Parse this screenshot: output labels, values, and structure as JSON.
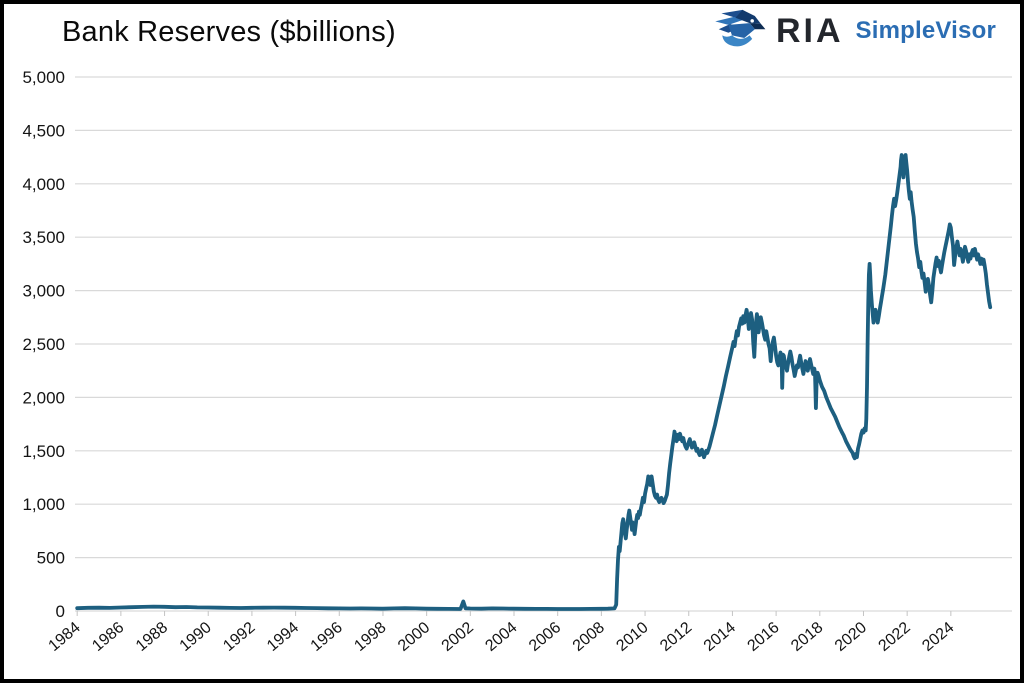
{
  "header": {
    "title": "Bank Reserves ($billions)",
    "logo": {
      "brand": "RIA",
      "product": "SimpleVisor",
      "icon": "eagle-icon",
      "brand_color": "#23262c",
      "product_color": "#2b6db3"
    }
  },
  "chart_data": {
    "type": "line",
    "title": "Bank Reserves ($billions)",
    "series_name": "Bank Reserves",
    "line_color": "#1d5f80",
    "grid_color": "#d9d9d9",
    "background": "#ffffff",
    "legend": "none",
    "grid": "horizontal-only",
    "xlabel": "",
    "ylabel": "",
    "ylim": [
      0,
      5000
    ],
    "xlim": [
      1983.9,
      2026.8
    ],
    "x_label_rotation": -40,
    "y_ticks": [
      0,
      500,
      1000,
      1500,
      2000,
      2500,
      3000,
      3500,
      4000,
      4500,
      5000
    ],
    "y_tick_labels": [
      "0",
      "500",
      "1,000",
      "1,500",
      "2,000",
      "2,500",
      "3,000",
      "3,500",
      "4,000",
      "4,500",
      "5,000"
    ],
    "x_ticks": [
      1984,
      1986,
      1988,
      1990,
      1992,
      1994,
      1996,
      1998,
      2000,
      2002,
      2004,
      2006,
      2008,
      2010,
      2012,
      2014,
      2016,
      2018,
      2020,
      2022,
      2024
    ],
    "x_tick_labels": [
      "1984",
      "1986",
      "1988",
      "1990",
      "1992",
      "1994",
      "1996",
      "1998",
      "2000",
      "2002",
      "2004",
      "2006",
      "2008",
      "2010",
      "2012",
      "2014",
      "2016",
      "2018",
      "2020",
      "2022",
      "2024"
    ],
    "points": [
      [
        1984,
        26
      ],
      [
        1984.5,
        30
      ],
      [
        1985,
        31
      ],
      [
        1985.5,
        29
      ],
      [
        1986,
        33
      ],
      [
        1986.5,
        36
      ],
      [
        1987,
        38
      ],
      [
        1987.5,
        41
      ],
      [
        1988,
        39
      ],
      [
        1988.5,
        36
      ],
      [
        1989,
        37
      ],
      [
        1989.5,
        34
      ],
      [
        1990,
        33
      ],
      [
        1990.5,
        31
      ],
      [
        1991,
        29
      ],
      [
        1991.5,
        28
      ],
      [
        1992,
        30
      ],
      [
        1992.5,
        31
      ],
      [
        1993,
        32
      ],
      [
        1993.5,
        31
      ],
      [
        1994,
        30
      ],
      [
        1994.5,
        28
      ],
      [
        1995,
        27
      ],
      [
        1995.5,
        25
      ],
      [
        1996,
        24
      ],
      [
        1996.5,
        23
      ],
      [
        1997,
        24
      ],
      [
        1997.5,
        23
      ],
      [
        1998,
        22
      ],
      [
        1998.5,
        24
      ],
      [
        1999,
        26
      ],
      [
        1999.5,
        24
      ],
      [
        2000,
        22
      ],
      [
        2000.5,
        21
      ],
      [
        2001,
        20
      ],
      [
        2001.55,
        19
      ],
      [
        2001.68,
        90
      ],
      [
        2001.78,
        25
      ],
      [
        2002,
        23
      ],
      [
        2002.5,
        22
      ],
      [
        2003,
        24
      ],
      [
        2003.5,
        23
      ],
      [
        2004,
        22
      ],
      [
        2004.5,
        21
      ],
      [
        2005,
        20
      ],
      [
        2005.5,
        20
      ],
      [
        2006,
        19
      ],
      [
        2006.5,
        19
      ],
      [
        2007,
        19
      ],
      [
        2007.5,
        20
      ],
      [
        2008,
        21
      ],
      [
        2008.3,
        22
      ],
      [
        2008.6,
        24
      ],
      [
        2008.68,
        60
      ],
      [
        2008.72,
        300
      ],
      [
        2008.76,
        480
      ],
      [
        2008.8,
        600
      ],
      [
        2008.84,
        560
      ],
      [
        2008.88,
        650
      ],
      [
        2008.92,
        740
      ],
      [
        2008.96,
        820
      ],
      [
        2009,
        860
      ],
      [
        2009.04,
        800
      ],
      [
        2009.08,
        720
      ],
      [
        2009.12,
        680
      ],
      [
        2009.16,
        760
      ],
      [
        2009.2,
        830
      ],
      [
        2009.24,
        900
      ],
      [
        2009.28,
        940
      ],
      [
        2009.32,
        880
      ],
      [
        2009.36,
        820
      ],
      [
        2009.4,
        760
      ],
      [
        2009.44,
        830
      ],
      [
        2009.48,
        780
      ],
      [
        2009.52,
        720
      ],
      [
        2009.56,
        790
      ],
      [
        2009.6,
        850
      ],
      [
        2009.64,
        900
      ],
      [
        2009.68,
        870
      ],
      [
        2009.72,
        930
      ],
      [
        2009.76,
        900
      ],
      [
        2009.8,
        950
      ],
      [
        2009.85,
        1000
      ],
      [
        2009.9,
        1060
      ],
      [
        2009.95,
        1020
      ],
      [
        2010,
        1100
      ],
      [
        2010.05,
        1150
      ],
      [
        2010.1,
        1190
      ],
      [
        2010.15,
        1260
      ],
      [
        2010.2,
        1220
      ],
      [
        2010.25,
        1180
      ],
      [
        2010.3,
        1260
      ],
      [
        2010.35,
        1190
      ],
      [
        2010.4,
        1120
      ],
      [
        2010.45,
        1080
      ],
      [
        2010.5,
        1060
      ],
      [
        2010.55,
        1090
      ],
      [
        2010.6,
        1040
      ],
      [
        2010.65,
        1020
      ],
      [
        2010.7,
        1035
      ],
      [
        2010.75,
        1060
      ],
      [
        2010.8,
        1040
      ],
      [
        2010.85,
        1010
      ],
      [
        2010.9,
        1030
      ],
      [
        2010.95,
        1060
      ],
      [
        2011,
        1090
      ],
      [
        2011.05,
        1180
      ],
      [
        2011.1,
        1290
      ],
      [
        2011.15,
        1380
      ],
      [
        2011.2,
        1460
      ],
      [
        2011.25,
        1540
      ],
      [
        2011.3,
        1610
      ],
      [
        2011.35,
        1680
      ],
      [
        2011.4,
        1630
      ],
      [
        2011.45,
        1590
      ],
      [
        2011.5,
        1650
      ],
      [
        2011.55,
        1610
      ],
      [
        2011.6,
        1660
      ],
      [
        2011.65,
        1620
      ],
      [
        2011.7,
        1590
      ],
      [
        2011.75,
        1620
      ],
      [
        2011.8,
        1570
      ],
      [
        2011.85,
        1540
      ],
      [
        2011.9,
        1520
      ],
      [
        2011.95,
        1550
      ],
      [
        2012,
        1580
      ],
      [
        2012.05,
        1610
      ],
      [
        2012.1,
        1570
      ],
      [
        2012.15,
        1530
      ],
      [
        2012.2,
        1550
      ],
      [
        2012.25,
        1580
      ],
      [
        2012.3,
        1540
      ],
      [
        2012.35,
        1500
      ],
      [
        2012.4,
        1520
      ],
      [
        2012.45,
        1480
      ],
      [
        2012.5,
        1460
      ],
      [
        2012.55,
        1490
      ],
      [
        2012.6,
        1510
      ],
      [
        2012.65,
        1470
      ],
      [
        2012.7,
        1440
      ],
      [
        2012.75,
        1470
      ],
      [
        2012.8,
        1500
      ],
      [
        2012.85,
        1480
      ],
      [
        2012.9,
        1510
      ],
      [
        2012.95,
        1540
      ],
      [
        2013,
        1580
      ],
      [
        2013.1,
        1660
      ],
      [
        2013.2,
        1740
      ],
      [
        2013.3,
        1830
      ],
      [
        2013.4,
        1920
      ],
      [
        2013.5,
        2010
      ],
      [
        2013.6,
        2100
      ],
      [
        2013.7,
        2200
      ],
      [
        2013.8,
        2290
      ],
      [
        2013.9,
        2380
      ],
      [
        2014,
        2470
      ],
      [
        2014.05,
        2520
      ],
      [
        2014.1,
        2480
      ],
      [
        2014.15,
        2560
      ],
      [
        2014.2,
        2620
      ],
      [
        2014.25,
        2580
      ],
      [
        2014.3,
        2660
      ],
      [
        2014.35,
        2700
      ],
      [
        2014.4,
        2740
      ],
      [
        2014.45,
        2690
      ],
      [
        2014.5,
        2760
      ],
      [
        2014.55,
        2700
      ],
      [
        2014.6,
        2770
      ],
      [
        2014.65,
        2820
      ],
      [
        2014.7,
        2750
      ],
      [
        2014.75,
        2640
      ],
      [
        2014.8,
        2710
      ],
      [
        2014.85,
        2790
      ],
      [
        2014.9,
        2730
      ],
      [
        2014.95,
        2520
      ],
      [
        2015,
        2380
      ],
      [
        2015.04,
        2550
      ],
      [
        2015.08,
        2700
      ],
      [
        2015.12,
        2780
      ],
      [
        2015.16,
        2720
      ],
      [
        2015.2,
        2610
      ],
      [
        2015.25,
        2690
      ],
      [
        2015.3,
        2750
      ],
      [
        2015.35,
        2700
      ],
      [
        2015.4,
        2640
      ],
      [
        2015.45,
        2580
      ],
      [
        2015.5,
        2540
      ],
      [
        2015.55,
        2620
      ],
      [
        2015.6,
        2560
      ],
      [
        2015.65,
        2500
      ],
      [
        2015.7,
        2460
      ],
      [
        2015.75,
        2340
      ],
      [
        2015.8,
        2450
      ],
      [
        2015.85,
        2520
      ],
      [
        2015.9,
        2560
      ],
      [
        2015.95,
        2480
      ],
      [
        2016,
        2390
      ],
      [
        2016.05,
        2330
      ],
      [
        2016.1,
        2300
      ],
      [
        2016.15,
        2370
      ],
      [
        2016.2,
        2420
      ],
      [
        2016.25,
        2380
      ],
      [
        2016.28,
        2090
      ],
      [
        2016.32,
        2400
      ],
      [
        2016.35,
        2390
      ],
      [
        2016.4,
        2330
      ],
      [
        2016.45,
        2290
      ],
      [
        2016.5,
        2250
      ],
      [
        2016.55,
        2320
      ],
      [
        2016.6,
        2380
      ],
      [
        2016.65,
        2430
      ],
      [
        2016.7,
        2380
      ],
      [
        2016.75,
        2310
      ],
      [
        2016.8,
        2260
      ],
      [
        2016.85,
        2200
      ],
      [
        2016.9,
        2250
      ],
      [
        2016.95,
        2300
      ],
      [
        2017,
        2280
      ],
      [
        2017.05,
        2340
      ],
      [
        2017.1,
        2390
      ],
      [
        2017.15,
        2330
      ],
      [
        2017.2,
        2270
      ],
      [
        2017.25,
        2220
      ],
      [
        2017.3,
        2280
      ],
      [
        2017.35,
        2340
      ],
      [
        2017.4,
        2300
      ],
      [
        2017.45,
        2250
      ],
      [
        2017.5,
        2310
      ],
      [
        2017.55,
        2360
      ],
      [
        2017.6,
        2310
      ],
      [
        2017.65,
        2260
      ],
      [
        2017.7,
        2220
      ],
      [
        2017.75,
        2270
      ],
      [
        2017.78,
        2230
      ],
      [
        2017.82,
        1900
      ],
      [
        2017.86,
        2180
      ],
      [
        2017.9,
        2230
      ],
      [
        2017.95,
        2200
      ],
      [
        2018,
        2160
      ],
      [
        2018.1,
        2100
      ],
      [
        2018.2,
        2060
      ],
      [
        2018.3,
        2000
      ],
      [
        2018.4,
        1950
      ],
      [
        2018.5,
        1900
      ],
      [
        2018.6,
        1860
      ],
      [
        2018.7,
        1820
      ],
      [
        2018.8,
        1770
      ],
      [
        2018.9,
        1720
      ],
      [
        2019,
        1680
      ],
      [
        2019.1,
        1640
      ],
      [
        2019.2,
        1590
      ],
      [
        2019.3,
        1550
      ],
      [
        2019.4,
        1510
      ],
      [
        2019.5,
        1480
      ],
      [
        2019.55,
        1450
      ],
      [
        2019.6,
        1430
      ],
      [
        2019.65,
        1470
      ],
      [
        2019.7,
        1440
      ],
      [
        2019.75,
        1520
      ],
      [
        2019.8,
        1560
      ],
      [
        2019.85,
        1610
      ],
      [
        2019.9,
        1660
      ],
      [
        2019.95,
        1690
      ],
      [
        2020,
        1670
      ],
      [
        2020.05,
        1710
      ],
      [
        2020.1,
        1690
      ],
      [
        2020.13,
        1800
      ],
      [
        2020.16,
        2100
      ],
      [
        2020.19,
        2500
      ],
      [
        2020.22,
        2900
      ],
      [
        2020.25,
        3150
      ],
      [
        2020.28,
        3250
      ],
      [
        2020.31,
        3150
      ],
      [
        2020.34,
        3000
      ],
      [
        2020.38,
        2880
      ],
      [
        2020.42,
        2780
      ],
      [
        2020.46,
        2700
      ],
      [
        2020.5,
        2760
      ],
      [
        2020.55,
        2820
      ],
      [
        2020.6,
        2760
      ],
      [
        2020.65,
        2700
      ],
      [
        2020.7,
        2760
      ],
      [
        2020.75,
        2830
      ],
      [
        2020.8,
        2890
      ],
      [
        2020.85,
        2950
      ],
      [
        2020.9,
        3010
      ],
      [
        2020.95,
        3080
      ],
      [
        2021,
        3150
      ],
      [
        2021.05,
        3240
      ],
      [
        2021.1,
        3330
      ],
      [
        2021.15,
        3420
      ],
      [
        2021.2,
        3510
      ],
      [
        2021.25,
        3600
      ],
      [
        2021.3,
        3700
      ],
      [
        2021.35,
        3790
      ],
      [
        2021.4,
        3860
      ],
      [
        2021.45,
        3790
      ],
      [
        2021.5,
        3850
      ],
      [
        2021.55,
        3920
      ],
      [
        2021.6,
        4000
      ],
      [
        2021.65,
        4080
      ],
      [
        2021.7,
        4160
      ],
      [
        2021.72,
        4220
      ],
      [
        2021.75,
        4270
      ],
      [
        2021.78,
        4230
      ],
      [
        2021.8,
        4180
      ],
      [
        2021.83,
        4060
      ],
      [
        2021.86,
        4150
      ],
      [
        2021.9,
        4230
      ],
      [
        2021.93,
        4270
      ],
      [
        2021.96,
        4200
      ],
      [
        2022,
        4120
      ],
      [
        2022.04,
        4020
      ],
      [
        2022.08,
        3930
      ],
      [
        2022.12,
        3860
      ],
      [
        2022.16,
        3920
      ],
      [
        2022.2,
        3840
      ],
      [
        2022.25,
        3760
      ],
      [
        2022.3,
        3690
      ],
      [
        2022.35,
        3560
      ],
      [
        2022.4,
        3440
      ],
      [
        2022.45,
        3360
      ],
      [
        2022.5,
        3300
      ],
      [
        2022.55,
        3220
      ],
      [
        2022.6,
        3270
      ],
      [
        2022.65,
        3180
      ],
      [
        2022.7,
        3120
      ],
      [
        2022.75,
        3160
      ],
      [
        2022.8,
        3080
      ],
      [
        2022.85,
        2990
      ],
      [
        2022.9,
        3060
      ],
      [
        2022.95,
        3110
      ],
      [
        2023,
        3050
      ],
      [
        2023.05,
        2960
      ],
      [
        2023.1,
        2890
      ],
      [
        2023.15,
        2990
      ],
      [
        2023.2,
        3120
      ],
      [
        2023.25,
        3190
      ],
      [
        2023.3,
        3260
      ],
      [
        2023.35,
        3310
      ],
      [
        2023.4,
        3230
      ],
      [
        2023.45,
        3280
      ],
      [
        2023.5,
        3220
      ],
      [
        2023.55,
        3170
      ],
      [
        2023.6,
        3240
      ],
      [
        2023.65,
        3300
      ],
      [
        2023.7,
        3360
      ],
      [
        2023.75,
        3410
      ],
      [
        2023.8,
        3460
      ],
      [
        2023.85,
        3510
      ],
      [
        2023.9,
        3560
      ],
      [
        2023.95,
        3620
      ],
      [
        2024,
        3590
      ],
      [
        2024.05,
        3500
      ],
      [
        2024.1,
        3420
      ],
      [
        2024.15,
        3240
      ],
      [
        2024.2,
        3330
      ],
      [
        2024.25,
        3400
      ],
      [
        2024.3,
        3460
      ],
      [
        2024.35,
        3400
      ],
      [
        2024.4,
        3330
      ],
      [
        2024.45,
        3390
      ],
      [
        2024.5,
        3330
      ],
      [
        2024.55,
        3270
      ],
      [
        2024.6,
        3340
      ],
      [
        2024.65,
        3410
      ],
      [
        2024.7,
        3370
      ],
      [
        2024.75,
        3310
      ],
      [
        2024.8,
        3270
      ],
      [
        2024.85,
        3340
      ],
      [
        2024.9,
        3300
      ],
      [
        2024.95,
        3350
      ],
      [
        2025,
        3380
      ],
      [
        2025.05,
        3330
      ],
      [
        2025.1,
        3390
      ],
      [
        2025.15,
        3340
      ],
      [
        2025.2,
        3290
      ],
      [
        2025.25,
        3340
      ],
      [
        2025.3,
        3300
      ],
      [
        2025.35,
        3250
      ],
      [
        2025.4,
        3300
      ],
      [
        2025.45,
        3250
      ],
      [
        2025.5,
        3290
      ],
      [
        2025.55,
        3230
      ],
      [
        2025.6,
        3160
      ],
      [
        2025.65,
        3060
      ],
      [
        2025.7,
        2980
      ],
      [
        2025.75,
        2900
      ],
      [
        2025.8,
        2845
      ]
    ]
  }
}
